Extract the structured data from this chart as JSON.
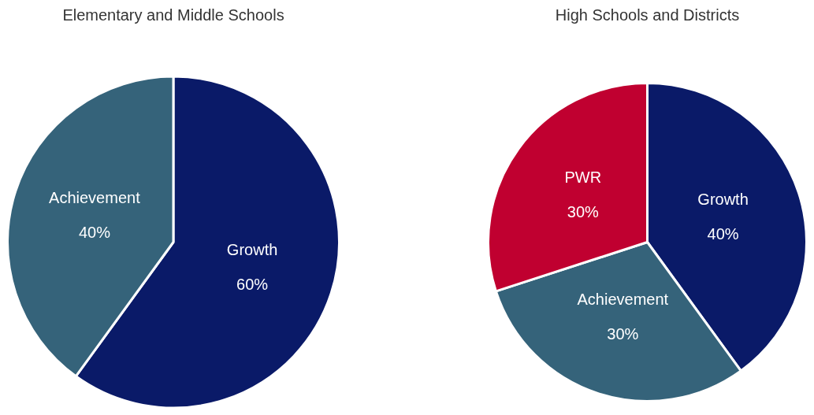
{
  "chart_data": [
    {
      "type": "pie",
      "title": "Elementary and Middle Schools",
      "categories": [
        "Growth",
        "Achievement"
      ],
      "values": [
        60,
        40
      ],
      "colors": [
        "#0a1a68",
        "#35637a"
      ],
      "value_labels": [
        "60%",
        "40%"
      ],
      "legend": false
    },
    {
      "type": "pie",
      "title": "High Schools and Districts",
      "categories": [
        "Growth",
        "Achievement",
        "PWR"
      ],
      "values": [
        40,
        30,
        30
      ],
      "colors": [
        "#0a1a68",
        "#35637a",
        "#c00030"
      ],
      "value_labels": [
        "40%",
        "30%",
        "30%"
      ],
      "legend": false
    }
  ]
}
